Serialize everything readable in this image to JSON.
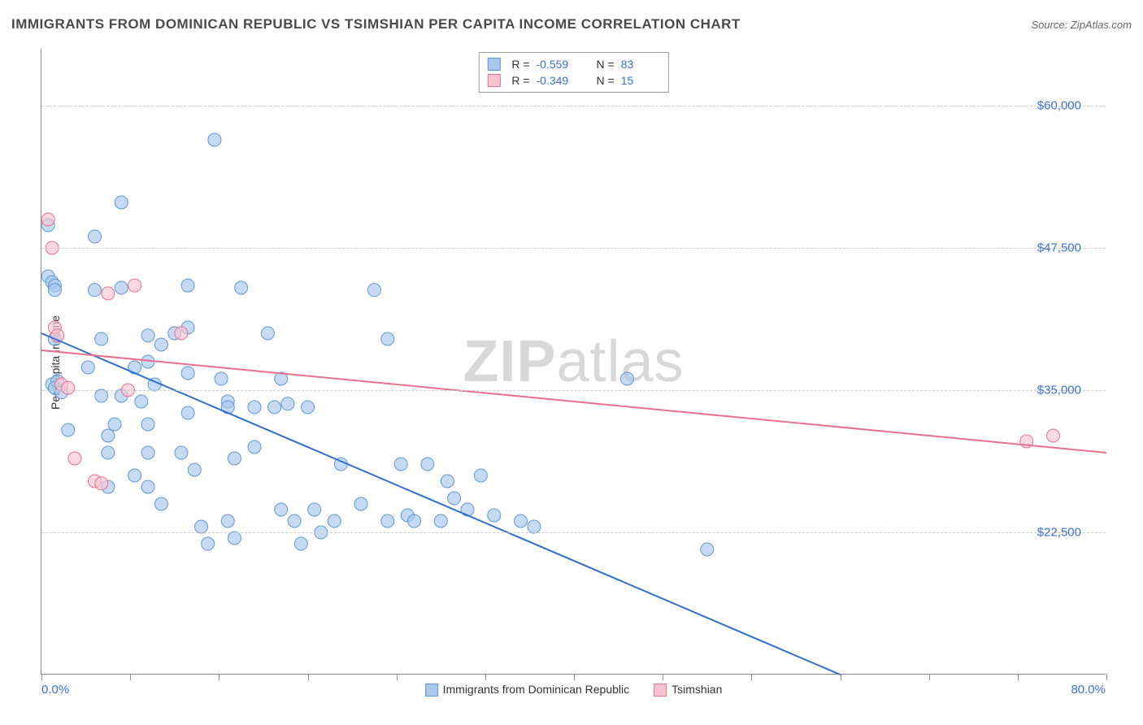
{
  "title": "IMMIGRANTS FROM DOMINICAN REPUBLIC VS TSIMSHIAN PER CAPITA INCOME CORRELATION CHART",
  "source_label": "Source: ",
  "source_name": "ZipAtlas.com",
  "y_axis_label": "Per Capita Income",
  "watermark_bold": "ZIP",
  "watermark_rest": "atlas",
  "chart": {
    "type": "scatter",
    "x_domain": [
      0,
      80
    ],
    "y_domain": [
      10000,
      65000
    ],
    "x_left_label": "0.0%",
    "x_right_label": "80.0%",
    "x_ticks": [
      0,
      6.67,
      13.33,
      20,
      26.67,
      33.33,
      40,
      46.67,
      53.33,
      60,
      66.67,
      73.33,
      80
    ],
    "y_gridlines": [
      22500,
      35000,
      47500,
      60000
    ],
    "y_tick_labels": {
      "22500": "$22,500",
      "35000": "$35,000",
      "47500": "$47,500",
      "60000": "$60,000"
    },
    "grid_color": "#cccccc",
    "axis_color": "#888888",
    "background_color": "#ffffff",
    "series": [
      {
        "name": "Immigrants from Dominican Republic",
        "label": "Immigrants from Dominican Republic",
        "marker_color": "#a8c8ec",
        "marker_stroke": "#5f97d8",
        "marker_radius": 8,
        "line_color": "#2f6fd0",
        "line_width": 2,
        "r_value": "-0.559",
        "n_value": "83",
        "regression": {
          "x1": 0,
          "y1": 40000,
          "x2": 60,
          "y2": 10000
        },
        "points": [
          [
            0.5,
            49500
          ],
          [
            0.5,
            45000
          ],
          [
            0.8,
            44500
          ],
          [
            1.0,
            44200
          ],
          [
            1.0,
            43800
          ],
          [
            1.0,
            39500
          ],
          [
            0.8,
            35500
          ],
          [
            1.2,
            35800
          ],
          [
            1.0,
            35200
          ],
          [
            1.5,
            34800
          ],
          [
            2.0,
            31500
          ],
          [
            6.0,
            51500
          ],
          [
            6.0,
            44000
          ],
          [
            6.0,
            34500
          ],
          [
            4.0,
            48500
          ],
          [
            4.5,
            39500
          ],
          [
            4.0,
            43800
          ],
          [
            3.5,
            37000
          ],
          [
            4.5,
            34500
          ],
          [
            5.0,
            31000
          ],
          [
            5.5,
            32000
          ],
          [
            5.0,
            26500
          ],
          [
            5.0,
            29500
          ],
          [
            13.0,
            57000
          ],
          [
            10.0,
            40000
          ],
          [
            8.0,
            39800
          ],
          [
            9.0,
            39000
          ],
          [
            8.0,
            37500
          ],
          [
            7.0,
            37000
          ],
          [
            7.5,
            34000
          ],
          [
            8.5,
            35500
          ],
          [
            8.0,
            32000
          ],
          [
            8.0,
            29500
          ],
          [
            8.0,
            26500
          ],
          [
            7.0,
            27500
          ],
          [
            9.0,
            25000
          ],
          [
            11.0,
            40500
          ],
          [
            11.0,
            44200
          ],
          [
            11.0,
            36500
          ],
          [
            11.0,
            33000
          ],
          [
            10.5,
            29500
          ],
          [
            11.5,
            28000
          ],
          [
            12.0,
            23000
          ],
          [
            12.5,
            21500
          ],
          [
            13.5,
            36000
          ],
          [
            14.0,
            34000
          ],
          [
            14.0,
            33500
          ],
          [
            14.5,
            29000
          ],
          [
            14.0,
            23500
          ],
          [
            14.5,
            22000
          ],
          [
            15.0,
            44000
          ],
          [
            16.0,
            33500
          ],
          [
            16.0,
            30000
          ],
          [
            17.0,
            40000
          ],
          [
            17.5,
            33500
          ],
          [
            18.0,
            36000
          ],
          [
            18.5,
            33800
          ],
          [
            18.0,
            24500
          ],
          [
            19.0,
            23500
          ],
          [
            19.5,
            21500
          ],
          [
            20.0,
            33500
          ],
          [
            20.5,
            24500
          ],
          [
            21.0,
            22500
          ],
          [
            22.0,
            23500
          ],
          [
            22.5,
            28500
          ],
          [
            24.0,
            25000
          ],
          [
            25.0,
            43800
          ],
          [
            26.0,
            39500
          ],
          [
            26.0,
            23500
          ],
          [
            27.0,
            28500
          ],
          [
            27.5,
            24000
          ],
          [
            28.0,
            23500
          ],
          [
            29.0,
            28500
          ],
          [
            30.0,
            23500
          ],
          [
            30.5,
            27000
          ],
          [
            31.0,
            25500
          ],
          [
            32.0,
            24500
          ],
          [
            33.0,
            27500
          ],
          [
            34.0,
            24000
          ],
          [
            36.0,
            23500
          ],
          [
            37.0,
            23000
          ],
          [
            44.0,
            36000
          ],
          [
            50.0,
            21000
          ]
        ]
      },
      {
        "name": "Tsimshian",
        "label": "Tsimshian",
        "marker_color": "#f7c5d0",
        "marker_stroke": "#e8708f",
        "marker_radius": 8,
        "line_color": "#e8708f",
        "line_width": 2,
        "r_value": "-0.349",
        "n_value": "15",
        "regression": {
          "x1": 0,
          "y1": 38500,
          "x2": 80,
          "y2": 29500
        },
        "points": [
          [
            0.5,
            50000
          ],
          [
            0.8,
            47500
          ],
          [
            1.0,
            40500
          ],
          [
            1.2,
            39800
          ],
          [
            1.5,
            35500
          ],
          [
            2.0,
            35200
          ],
          [
            2.5,
            29000
          ],
          [
            4.0,
            27000
          ],
          [
            4.5,
            26800
          ],
          [
            5.0,
            43500
          ],
          [
            6.5,
            35000
          ],
          [
            7.0,
            44200
          ],
          [
            10.5,
            40000
          ],
          [
            74.0,
            30500
          ],
          [
            76.0,
            31000
          ]
        ]
      }
    ],
    "stats_box": {
      "r_label": "R =",
      "n_label": "N ="
    }
  }
}
